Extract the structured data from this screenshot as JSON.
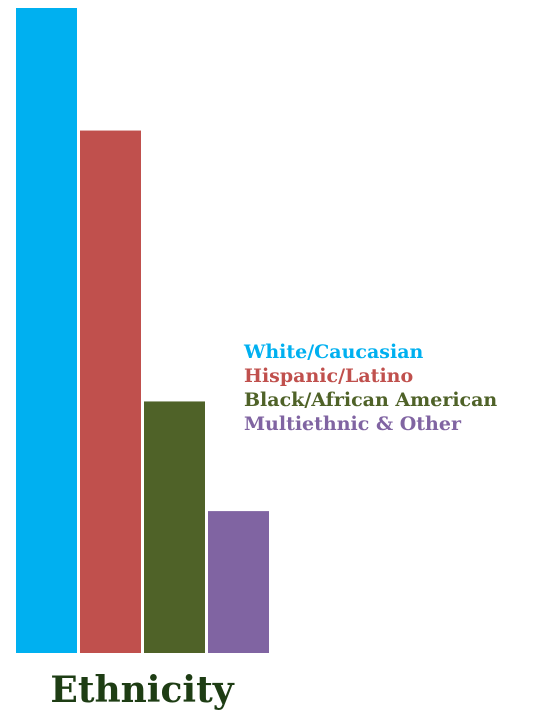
{
  "chart_data": {
    "type": "bar",
    "title": "Ethnicity",
    "categories": [
      "White/Caucasian",
      "Hispanic/Latino",
      "Black/African American",
      "Multiethnic & Other"
    ],
    "values": [
      100,
      81,
      39,
      22
    ],
    "colors": [
      "#00b0f0",
      "#c0504d",
      "#4f6228",
      "#8064a2"
    ],
    "ylim": [
      0,
      100
    ],
    "grid": false,
    "legend_position": "right",
    "title_color": "#1e3d14"
  }
}
